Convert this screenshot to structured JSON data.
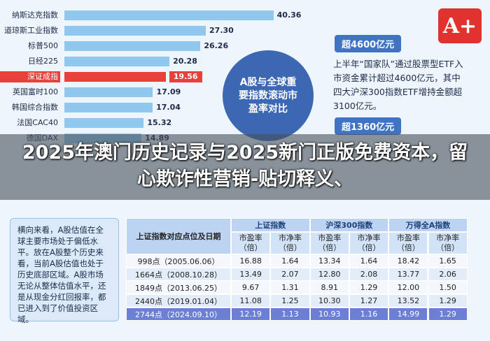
{
  "bar_list": {
    "labels": [
      "纳斯达克指数",
      "道琼斯工业指数",
      "标普500",
      "日经225",
      "深证成指",
      "英国富时100",
      "韩国综合指数",
      "法国CAC40",
      "德国DAX"
    ],
    "values": [
      40.36,
      27.3,
      26.26,
      20.28,
      19.56,
      17.09,
      17.04,
      15.32,
      14.89
    ],
    "value_labels": [
      "40.36",
      "27.30",
      "26.26",
      "20.28",
      "19.56",
      "17.09",
      "17.04",
      "15.32",
      "14.89"
    ],
    "color": "#8fc7ee",
    "highlight_index": 4,
    "highlight_color": "#e8413c"
  },
  "bubble": "A股与全球重要指数滚动市盈率对比",
  "logo": "A+",
  "tags": [
    "超4600亿元",
    "超1360亿元"
  ],
  "note": "上半年“国家队”通过股票型ETF入市资金累计超过4600亿元，其中四大沪深300指数ETF增持金额超3100亿元。",
  "banner": "2025年澳门历史记录与2025新门正版免费资本，留心欺诈性营销-贴切释义、",
  "text_box": "横向来看，A股估值在全球主要市场处于偏低水平。放在A股整个历史来看，当前A股估值也处于历史底部区域。A股市场无论从整体估值水平，还是从现金分红回报率，都已进入到了价值投资区域。",
  "table": {
    "title": "上证指数对应点位及日期",
    "groups": [
      "上证指数",
      "沪深300指数",
      "万得全A指数"
    ],
    "subheaders": [
      "市盈率（倍）",
      "市净率（倍）",
      "市盈率（倍）",
      "市净率（倍）",
      "市盈率（倍）",
      "市净率（倍）"
    ],
    "rows": [
      [
        "998点（2005.06.06）",
        "16.88",
        "1.64",
        "13.34",
        "1.64",
        "18.42",
        "1.65"
      ],
      [
        "1664点（2008.10.28）",
        "13.49",
        "2.07",
        "12.80",
        "2.08",
        "13.77",
        "2.06"
      ],
      [
        "1849点（2013.06.25）",
        "9.67",
        "1.31",
        "8.91",
        "1.29",
        "12.00",
        "1.50"
      ],
      [
        "2440点（2019.01.04）",
        "11.08",
        "1.25",
        "10.30",
        "1.27",
        "13.52",
        "1.29"
      ],
      [
        "2744点（2024.09.10）",
        "12.19",
        "1.13",
        "10.93",
        "1.16",
        "14.99",
        "1.29"
      ]
    ]
  }
}
